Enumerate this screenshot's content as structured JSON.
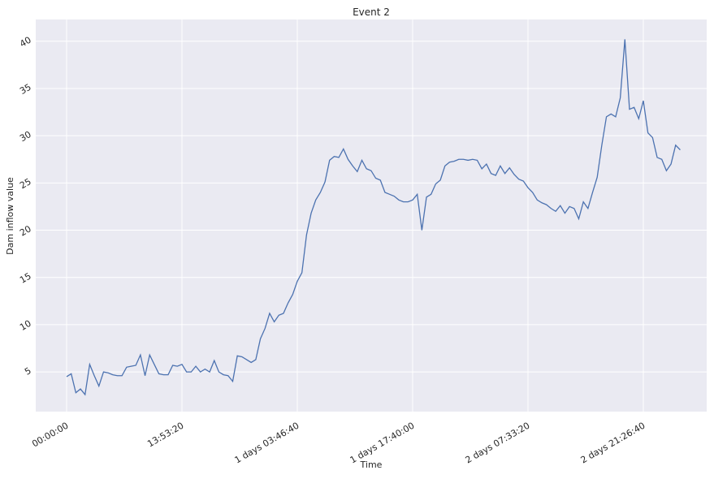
{
  "chart_data": {
    "type": "line",
    "title": "Event 2",
    "xlabel": "Time",
    "ylabel": "Dam inflow value",
    "x": [
      0,
      2000,
      4000,
      6000,
      8000,
      10000,
      12000,
      14000,
      16000,
      18000,
      20000,
      22000,
      24000,
      26000,
      28000,
      30000,
      32000,
      34000,
      36000,
      38000,
      40000,
      42000,
      44000,
      46000,
      48000,
      50000,
      52000,
      54000,
      56000,
      58000,
      60000,
      62000,
      64000,
      66000,
      68000,
      70000,
      72000,
      74000,
      76000,
      78000,
      80000,
      82000,
      84000,
      86000,
      88000,
      90000,
      92000,
      94000,
      96000,
      98000,
      100000,
      102000,
      104000,
      106000,
      108000,
      110000,
      112000,
      114000,
      116000,
      118000,
      120000,
      122000,
      124000,
      126000,
      128000,
      130000,
      132000,
      134000,
      136000,
      138000,
      140000,
      142000,
      144000,
      146000,
      148000,
      150000,
      152000,
      154000,
      156000,
      158000,
      160000,
      162000,
      164000,
      166000,
      168000,
      170000,
      172000,
      174000,
      176000,
      178000,
      180000,
      182000,
      184000,
      186000,
      188000,
      190000,
      192000,
      194000,
      196000,
      198000,
      200000,
      202000,
      204000,
      206000,
      208000,
      210000,
      212000,
      214000,
      216000,
      218000,
      220000,
      222000,
      224000,
      226000,
      228000,
      230000,
      232000,
      234000,
      236000,
      238000,
      240000,
      242000,
      244000,
      246000,
      248000,
      250000,
      252000,
      254000,
      256000,
      258000,
      260000,
      262000,
      264000,
      266000
    ],
    "series": [
      {
        "name": "Dam inflow value",
        "color": "#4c72b0",
        "values": [
          4.5,
          4.8,
          2.8,
          3.2,
          2.6,
          5.8,
          4.6,
          3.5,
          5.0,
          4.9,
          4.7,
          4.6,
          4.6,
          5.5,
          5.6,
          5.7,
          6.8,
          4.6,
          6.8,
          5.8,
          4.8,
          4.7,
          4.7,
          5.7,
          5.6,
          5.8,
          5.0,
          5.0,
          5.6,
          5.0,
          5.3,
          5.0,
          6.2,
          5.0,
          4.7,
          4.6,
          4.0,
          6.7,
          6.6,
          6.3,
          6.0,
          6.3,
          8.5,
          9.6,
          11.2,
          10.3,
          11.0,
          11.2,
          12.3,
          13.2,
          14.6,
          15.5,
          19.5,
          21.8,
          23.2,
          24.0,
          25.1,
          27.4,
          27.8,
          27.7,
          28.6,
          27.5,
          26.8,
          26.2,
          27.4,
          26.5,
          26.3,
          25.5,
          25.3,
          24.0,
          23.8,
          23.6,
          23.2,
          23.0,
          23.0,
          23.2,
          23.8,
          20.0,
          23.5,
          23.8,
          24.9,
          25.3,
          26.8,
          27.2,
          27.3,
          27.5,
          27.5,
          27.4,
          27.5,
          27.4,
          26.5,
          27.0,
          26.0,
          25.8,
          26.8,
          26.0,
          26.6,
          25.9,
          25.4,
          25.2,
          24.5,
          24.0,
          23.2,
          22.9,
          22.7,
          22.3,
          22.0,
          22.6,
          21.8,
          22.5,
          22.3,
          21.2,
          23.0,
          22.3,
          24.0,
          25.6,
          29.0,
          32.0,
          32.3,
          32.0,
          34.0,
          40.2,
          32.8,
          33.0,
          31.8,
          33.7,
          30.3,
          29.8,
          27.7,
          27.5,
          26.3,
          27.0,
          29.0,
          28.5
        ]
      }
    ],
    "xlim": [
      -13380,
      277465
    ],
    "ylim": [
      0.8,
      42.3
    ],
    "xticks": [
      {
        "value": 0,
        "label": "00:00:00"
      },
      {
        "value": 50000,
        "label": "13:53:20"
      },
      {
        "value": 100000,
        "label": "1 days 03:46:40"
      },
      {
        "value": 150000,
        "label": "1 days 17:40:00"
      },
      {
        "value": 200000,
        "label": "2 days 07:33:20"
      },
      {
        "value": 250000,
        "label": "2 days 21:26:40"
      }
    ],
    "yticks": [
      5,
      10,
      15,
      20,
      25,
      30,
      35,
      40
    ],
    "grid": true
  }
}
